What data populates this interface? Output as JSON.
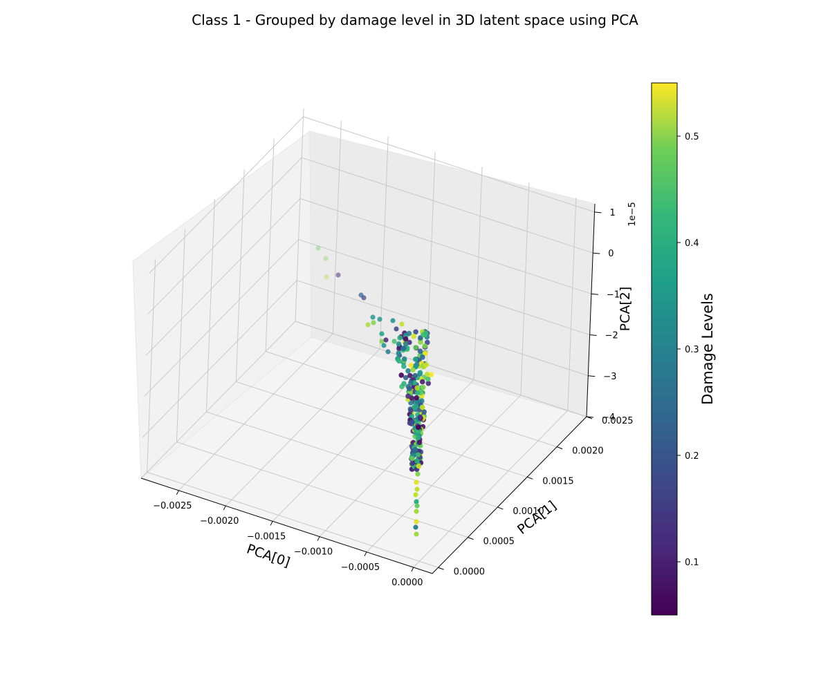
{
  "chart_data": {
    "type": "scatter",
    "projection": "3d",
    "title": "Class 1 - Grouped by damage level in 3D latent space using PCA",
    "xlabel": "PCA[0]",
    "ylabel": "PCA[1]",
    "zlabel": "PCA[2]",
    "xlim": [
      -0.0029,
      0.0002
    ],
    "ylim": [
      -0.0001,
      0.0025
    ],
    "zlim": [
      -4e-05,
      1.2e-05
    ],
    "x_ticks": [
      "−0.0025",
      "−0.0020",
      "−0.0015",
      "−0.0010",
      "−0.0005",
      "0.0000"
    ],
    "y_ticks": [
      "0.0000",
      "0.0005",
      "0.0010",
      "0.0015",
      "0.0020",
      "0.0025"
    ],
    "z_ticks": [
      "1",
      "0",
      "−1",
      "−2",
      "−3",
      "−4"
    ],
    "z_offset_label": "1e−5",
    "grid": true,
    "colormap": "viridis",
    "colorbar": {
      "label": "Damage Levels",
      "range": [
        0.05,
        0.55
      ],
      "ticks": [
        "0.1",
        "0.2",
        "0.3",
        "0.4",
        "0.5"
      ]
    },
    "point_count_estimate": 120,
    "summary": "Points form a tight vertical column near PCA[0]≈0, PCA[1]≈0.0001–0.0004, spanning PCA[2] from about −4e-5 to −1e-5, with a sparse trail extending toward PCA[0]≈−0.0027 at higher PCA[2]; damage levels are mixed throughout."
  }
}
